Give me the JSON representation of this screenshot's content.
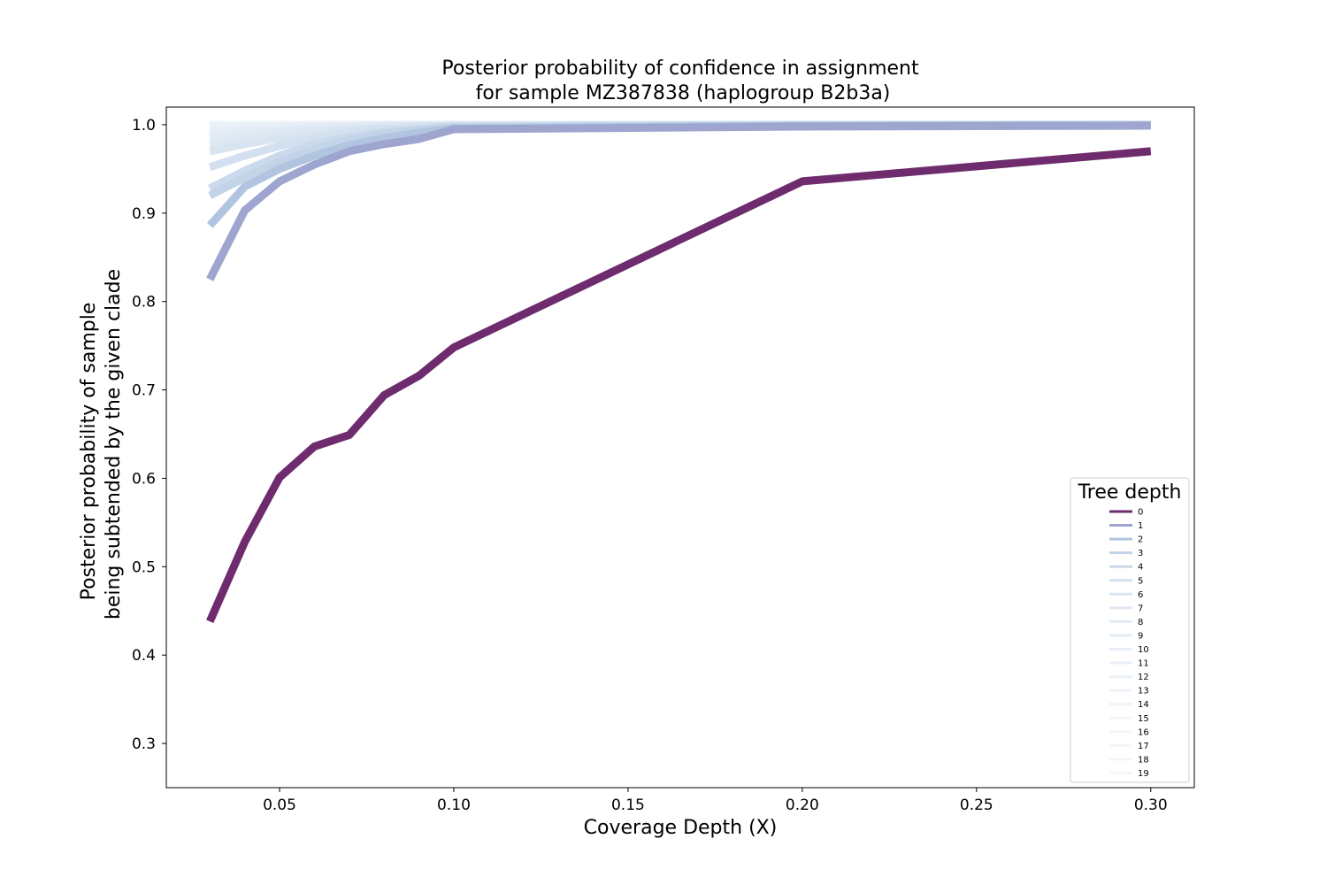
{
  "chart_data": {
    "type": "line",
    "title_line1": "Posterior probability of confidence in assignment",
    "title_line2": "for sample MZ387838 (haplogroup B2b3a)",
    "xlabel": "Coverage Depth (X)",
    "ylabel_line1": "Posterior probability of sample",
    "ylabel_line2": "being subtended by the given clade",
    "xlim": [
      0.0175,
      0.3125
    ],
    "ylim": [
      0.25,
      1.02
    ],
    "xticks": [
      0.05,
      0.1,
      0.15,
      0.2,
      0.25,
      0.3
    ],
    "xtick_labels": [
      "0.05",
      "0.10",
      "0.15",
      "0.20",
      "0.25",
      "0.30"
    ],
    "yticks": [
      0.3,
      0.4,
      0.5,
      0.6,
      0.7,
      0.8,
      0.9,
      1.0
    ],
    "ytick_labels": [
      "0.3",
      "0.4",
      "0.5",
      "0.6",
      "0.7",
      "0.8",
      "0.9",
      "1.0"
    ],
    "grid": false,
    "legend": {
      "title": "Tree depth",
      "placement": "lower-right"
    },
    "x": [
      0.03,
      0.04,
      0.05,
      0.06,
      0.07,
      0.08,
      0.09,
      0.1,
      0.2,
      0.3
    ],
    "series": [
      {
        "name": "0",
        "color": "#6e2c6e",
        "values": [
          0.438,
          0.528,
          0.601,
          0.636,
          0.649,
          0.694,
          0.716,
          0.748,
          0.936,
          0.97
        ]
      },
      {
        "name": "1",
        "color": "#9ea6cf",
        "values": [
          0.825,
          0.903,
          0.936,
          0.955,
          0.97,
          0.978,
          0.984,
          0.995,
          0.998,
          0.999
        ]
      },
      {
        "name": "2",
        "color": "#b1c5e0",
        "values": [
          0.886,
          0.93,
          0.95,
          0.965,
          0.977,
          0.985,
          0.991,
          0.996,
          0.999,
          1.0
        ]
      },
      {
        "name": "3",
        "color": "#c3d3e8",
        "values": [
          0.92,
          0.94,
          0.958,
          0.972,
          0.983,
          0.99,
          0.994,
          0.997,
          0.999,
          1.0
        ]
      },
      {
        "name": "4",
        "color": "#cbd9ec",
        "values": [
          0.928,
          0.948,
          0.965,
          0.978,
          0.986,
          0.992,
          0.995,
          0.998,
          1.0,
          1.0
        ]
      },
      {
        "name": "5",
        "color": "#d3e0ef",
        "values": [
          0.952,
          0.965,
          0.976,
          0.985,
          0.991,
          0.995,
          0.997,
          0.998,
          1.0,
          1.0
        ]
      },
      {
        "name": "6",
        "color": "#d9e4f1",
        "values": [
          0.97,
          0.978,
          0.985,
          0.99,
          0.994,
          0.996,
          0.998,
          0.999,
          1.0,
          1.0
        ]
      },
      {
        "name": "7",
        "color": "#dee8f3",
        "values": [
          0.978,
          0.985,
          0.99,
          0.994,
          0.996,
          0.998,
          0.999,
          0.999,
          1.0,
          1.0
        ]
      },
      {
        "name": "8",
        "color": "#e2ebf5",
        "values": [
          0.985,
          0.99,
          0.993,
          0.996,
          0.998,
          0.999,
          0.999,
          1.0,
          1.0,
          1.0
        ]
      },
      {
        "name": "9",
        "color": "#e5edf6",
        "values": [
          0.99,
          0.993,
          0.995,
          0.997,
          0.998,
          0.999,
          1.0,
          1.0,
          1.0,
          1.0
        ]
      },
      {
        "name": "10",
        "color": "#e8eff7",
        "values": [
          0.993,
          0.995,
          0.997,
          0.998,
          0.999,
          1.0,
          1.0,
          1.0,
          1.0,
          1.0
        ]
      },
      {
        "name": "11",
        "color": "#eaf1f8",
        "values": [
          0.995,
          0.997,
          0.998,
          0.999,
          1.0,
          1.0,
          1.0,
          1.0,
          1.0,
          1.0
        ]
      },
      {
        "name": "12",
        "color": "#ecf2f9",
        "values": [
          0.997,
          0.998,
          0.999,
          1.0,
          1.0,
          1.0,
          1.0,
          1.0,
          1.0,
          1.0
        ]
      },
      {
        "name": "13",
        "color": "#edf3f9",
        "values": [
          0.998,
          0.999,
          1.0,
          1.0,
          1.0,
          1.0,
          1.0,
          1.0,
          1.0,
          1.0
        ]
      },
      {
        "name": "14",
        "color": "#eef4fa",
        "values": [
          0.999,
          1.0,
          1.0,
          1.0,
          1.0,
          1.0,
          1.0,
          1.0,
          1.0,
          1.0
        ]
      },
      {
        "name": "15",
        "color": "#eff5fa",
        "values": [
          1.0,
          1.0,
          1.0,
          1.0,
          1.0,
          1.0,
          1.0,
          1.0,
          1.0,
          1.0
        ]
      },
      {
        "name": "16",
        "color": "#f0f5fa",
        "values": [
          1.0,
          1.0,
          1.0,
          1.0,
          1.0,
          1.0,
          1.0,
          1.0,
          1.0,
          1.0
        ]
      },
      {
        "name": "17",
        "color": "#f1f6fb",
        "values": [
          1.0,
          1.0,
          1.0,
          1.0,
          1.0,
          1.0,
          1.0,
          1.0,
          1.0,
          1.0
        ]
      },
      {
        "name": "18",
        "color": "#f2f6fb",
        "values": [
          1.0,
          1.0,
          1.0,
          1.0,
          1.0,
          1.0,
          1.0,
          1.0,
          1.0,
          1.0
        ]
      },
      {
        "name": "19",
        "color": "#f3f7fb",
        "values": [
          1.0,
          1.0,
          1.0,
          1.0,
          1.0,
          1.0,
          1.0,
          1.0,
          1.0,
          1.0
        ]
      }
    ]
  }
}
